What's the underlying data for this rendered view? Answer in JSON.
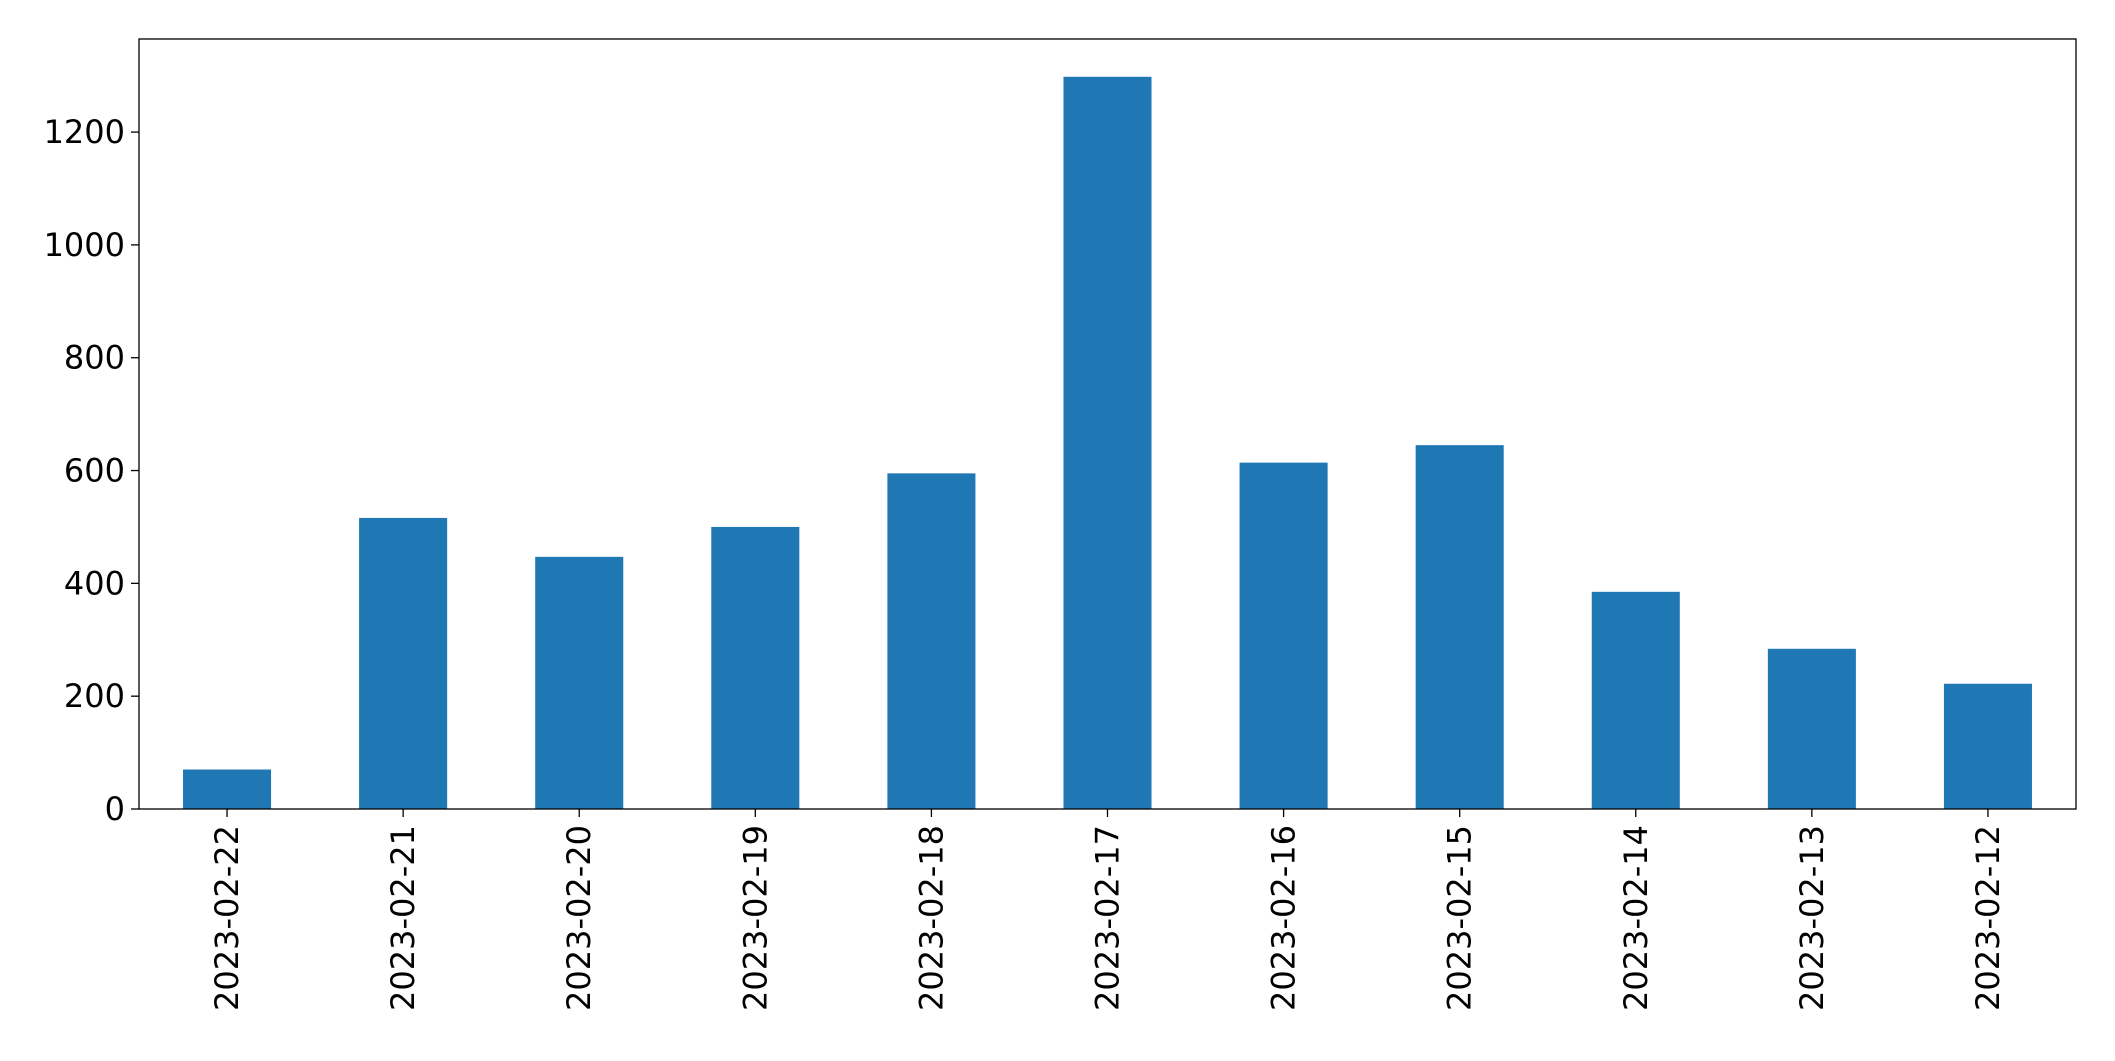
{
  "chart_data": {
    "type": "bar",
    "categories": [
      "2023-02-22",
      "2023-02-21",
      "2023-02-20",
      "2023-02-19",
      "2023-02-18",
      "2023-02-17",
      "2023-02-16",
      "2023-02-15",
      "2023-02-14",
      "2023-02-13",
      "2023-02-12"
    ],
    "values": [
      70,
      516,
      447,
      500,
      595,
      1298,
      614,
      645,
      385,
      284,
      222
    ],
    "color": "#1f77b4",
    "ylim": [
      0,
      1365
    ],
    "yticks": [
      0,
      200,
      400,
      600,
      800,
      1000,
      1200
    ],
    "grid": false
  }
}
